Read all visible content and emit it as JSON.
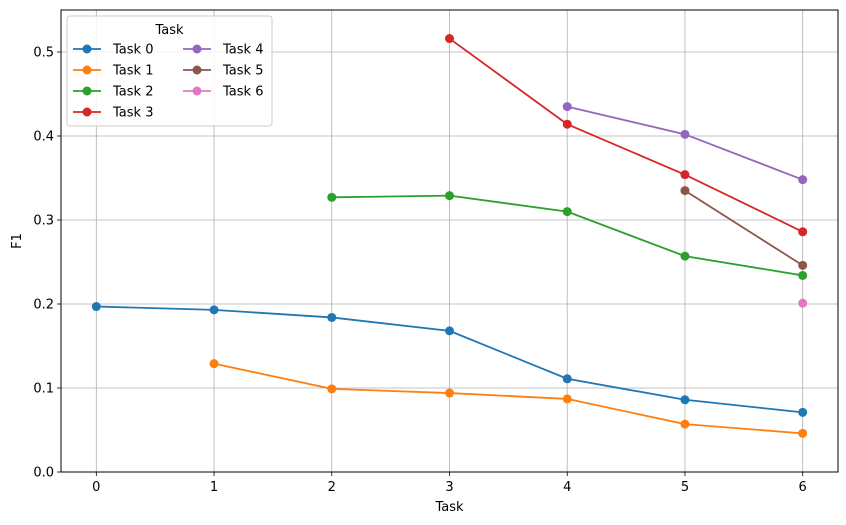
{
  "chart_data": {
    "type": "line",
    "title": "",
    "xlabel": "Task",
    "ylabel": "F1",
    "xlim": [
      -0.3,
      6.3
    ],
    "ylim": [
      0,
      0.55
    ],
    "xticks": [
      0,
      1,
      2,
      3,
      4,
      5,
      6
    ],
    "yticks": [
      0.0,
      0.1,
      0.2,
      0.3,
      0.4,
      0.5
    ],
    "ytick_labels": [
      "0.0",
      "0.1",
      "0.2",
      "0.3",
      "0.4",
      "0.5"
    ],
    "grid": true,
    "legend": {
      "title": "Task",
      "placement": "top-left",
      "columns": 2
    },
    "series": [
      {
        "name": "Task 0",
        "color": "#1f77b4",
        "x": [
          0,
          1,
          2,
          3,
          4,
          5,
          6
        ],
        "y": [
          0.197,
          0.193,
          0.184,
          0.168,
          0.111,
          0.086,
          0.071
        ]
      },
      {
        "name": "Task 1",
        "color": "#ff7f0e",
        "x": [
          1,
          2,
          3,
          4,
          5,
          6
        ],
        "y": [
          0.129,
          0.099,
          0.094,
          0.087,
          0.057,
          0.046
        ]
      },
      {
        "name": "Task 2",
        "color": "#2ca02c",
        "x": [
          2,
          3,
          4,
          5,
          6
        ],
        "y": [
          0.327,
          0.329,
          0.31,
          0.257,
          0.234
        ]
      },
      {
        "name": "Task 3",
        "color": "#d62728",
        "x": [
          3,
          4,
          5,
          6
        ],
        "y": [
          0.516,
          0.414,
          0.354,
          0.286
        ]
      },
      {
        "name": "Task 4",
        "color": "#9467bd",
        "x": [
          4,
          5,
          6
        ],
        "y": [
          0.435,
          0.402,
          0.348
        ]
      },
      {
        "name": "Task 5",
        "color": "#8c564b",
        "x": [
          5,
          6
        ],
        "y": [
          0.335,
          0.246
        ]
      },
      {
        "name": "Task 6",
        "color": "#e377c2",
        "x": [
          6
        ],
        "y": [
          0.201
        ]
      }
    ]
  }
}
